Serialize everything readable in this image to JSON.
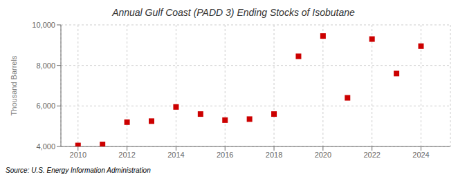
{
  "chart_data": {
    "type": "scatter",
    "title": "Annual Gulf Coast (PADD 3) Ending Stocks of Isobutane",
    "ylabel": "Thousand Barrels",
    "annotation": "Source: U.S. Energy Information Administration",
    "x": [
      2010,
      2011,
      2012,
      2013,
      2014,
      2015,
      2016,
      2017,
      2018,
      2019,
      2020,
      2021,
      2022,
      2023,
      2024
    ],
    "values": [
      4050,
      4100,
      5200,
      5250,
      5950,
      5600,
      5300,
      5350,
      5600,
      8450,
      9450,
      6400,
      9300,
      7600,
      8950
    ],
    "color": "#cc0000",
    "marker": "square",
    "xlim": [
      2009.3,
      2025.2
    ],
    "xticks": [
      2010,
      2012,
      2014,
      2016,
      2018,
      2020,
      2022,
      2024
    ],
    "ylim": [
      4000,
      10000
    ],
    "yticks": [
      {
        "value": 4000,
        "label": "4,000"
      },
      {
        "value": 6000,
        "label": "6,000"
      },
      {
        "value": 8000,
        "label": "8,000"
      },
      {
        "value": 10000,
        "label": "10,000"
      }
    ],
    "grid": true
  }
}
